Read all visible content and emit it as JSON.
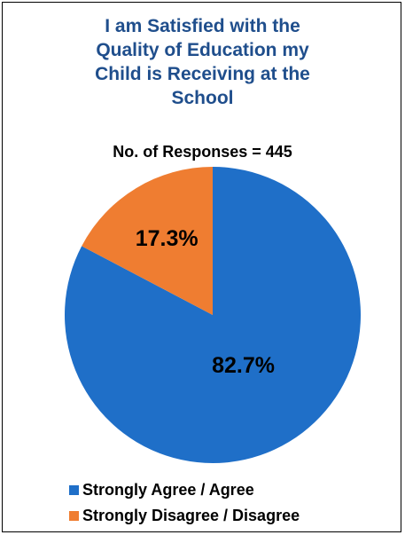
{
  "chart_data": {
    "type": "pie",
    "title_lines": [
      "I am Satisfied with the",
      "Quality of Education my",
      "Child is Receiving at the",
      "School"
    ],
    "subtitle": "No. of Responses = 445",
    "categories": [
      "Strongly Agree / Agree",
      "Strongly Disagree / Disagree"
    ],
    "values": [
      82.7,
      17.3
    ],
    "data_labels": [
      "82.7%",
      "17.3%"
    ],
    "colors": [
      "#1f6fc8",
      "#ef7d31"
    ],
    "title_color": "#1f4e8c",
    "legend_placement": "bottom-left"
  }
}
